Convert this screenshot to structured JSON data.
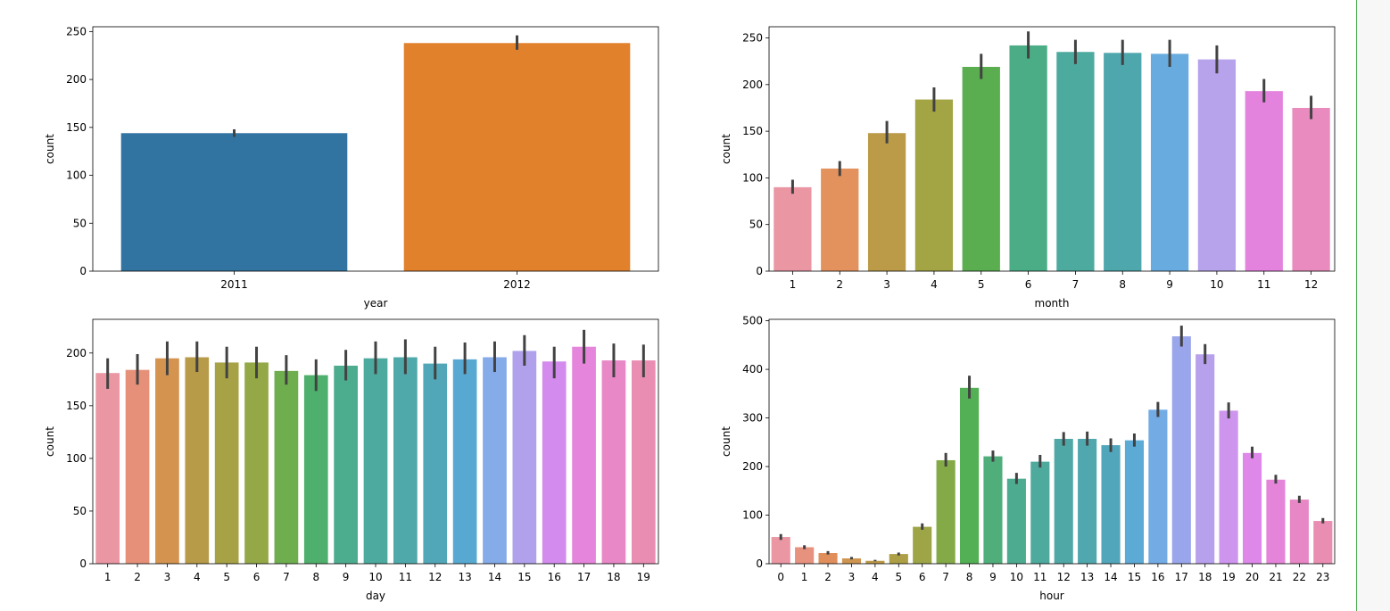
{
  "chart_data": [
    {
      "type": "bar",
      "xlabel": "year",
      "ylabel": "count",
      "categories": [
        "2011",
        "2012"
      ],
      "values": [
        144,
        238
      ],
      "errors": [
        [
          140,
          148
        ],
        [
          231,
          246
        ]
      ],
      "ylim": [
        0,
        255
      ],
      "yticks": [
        0,
        50,
        100,
        150,
        200,
        250
      ],
      "colors": [
        "#3274a1",
        "#e1812c"
      ]
    },
    {
      "type": "bar",
      "xlabel": "month",
      "ylabel": "count",
      "categories": [
        "1",
        "2",
        "3",
        "4",
        "5",
        "6",
        "7",
        "8",
        "9",
        "10",
        "11",
        "12"
      ],
      "values": [
        90,
        110,
        148,
        184,
        219,
        242,
        235,
        234,
        233,
        227,
        193,
        175
      ],
      "errors": [
        [
          83,
          98
        ],
        [
          102,
          118
        ],
        [
          137,
          161
        ],
        [
          171,
          197
        ],
        [
          206,
          233
        ],
        [
          228,
          257
        ],
        [
          222,
          248
        ],
        [
          221,
          248
        ],
        [
          219,
          248
        ],
        [
          212,
          242
        ],
        [
          181,
          206
        ],
        [
          163,
          188
        ]
      ],
      "ylim": [
        0,
        262
      ],
      "yticks": [
        0,
        50,
        100,
        150,
        200,
        250
      ],
      "colors": [
        "#ea96a3",
        "#e3925e",
        "#bb9b48",
        "#a3a545",
        "#5aae4f",
        "#4bad85",
        "#4caa9f",
        "#4ea7ac",
        "#68acdf",
        "#b7a2ec",
        "#e483de",
        "#e98bbf"
      ]
    },
    {
      "type": "bar",
      "xlabel": "day",
      "ylabel": "count",
      "categories": [
        "1",
        "2",
        "3",
        "4",
        "5",
        "6",
        "7",
        "8",
        "9",
        "10",
        "11",
        "12",
        "13",
        "14",
        "15",
        "16",
        "17",
        "18",
        "19"
      ],
      "values": [
        181,
        184,
        195,
        196,
        191,
        191,
        183,
        179,
        188,
        195,
        196,
        190,
        194,
        196,
        202,
        192,
        206,
        193,
        193
      ],
      "errors": [
        [
          166,
          195
        ],
        [
          170,
          199
        ],
        [
          179,
          211
        ],
        [
          182,
          211
        ],
        [
          176,
          206
        ],
        [
          176,
          206
        ],
        [
          170,
          198
        ],
        [
          164,
          194
        ],
        [
          174,
          203
        ],
        [
          180,
          211
        ],
        [
          180,
          213
        ],
        [
          175,
          206
        ],
        [
          180,
          210
        ],
        [
          182,
          211
        ],
        [
          188,
          217
        ],
        [
          176,
          206
        ],
        [
          190,
          222
        ],
        [
          177,
          209
        ],
        [
          177,
          208
        ]
      ],
      "ylim": [
        0,
        232
      ],
      "yticks": [
        0,
        50,
        100,
        150,
        200
      ],
      "colors": [
        "#ea96a3",
        "#e6907a",
        "#d4944f",
        "#b89b49",
        "#a8a246",
        "#94a847",
        "#6fae4e",
        "#4faf6c",
        "#4cac8e",
        "#4daa9e",
        "#4fa8a9",
        "#51a7b7",
        "#58a9d1",
        "#85abe8",
        "#b1a1ec",
        "#d38ced",
        "#e585db",
        "#e888c7",
        "#ea8db3"
      ]
    },
    {
      "type": "bar",
      "xlabel": "hour",
      "ylabel": "count",
      "categories": [
        "0",
        "1",
        "2",
        "3",
        "4",
        "5",
        "6",
        "7",
        "8",
        "9",
        "10",
        "11",
        "12",
        "13",
        "14",
        "15",
        "16",
        "17",
        "18",
        "19",
        "20",
        "21",
        "22",
        "23"
      ],
      "values": [
        55,
        34,
        22,
        11,
        6,
        20,
        76,
        213,
        362,
        221,
        175,
        210,
        257,
        257,
        244,
        254,
        317,
        468,
        431,
        315,
        228,
        173,
        132,
        88
      ],
      "errors": [
        [
          49,
          61
        ],
        [
          30,
          38
        ],
        [
          19,
          26
        ],
        [
          9,
          14
        ],
        [
          5,
          8
        ],
        [
          17,
          23
        ],
        [
          70,
          83
        ],
        [
          200,
          228
        ],
        [
          340,
          387
        ],
        [
          210,
          233
        ],
        [
          164,
          187
        ],
        [
          198,
          224
        ],
        [
          243,
          271
        ],
        [
          243,
          272
        ],
        [
          230,
          258
        ],
        [
          241,
          268
        ],
        [
          302,
          333
        ],
        [
          447,
          490
        ],
        [
          411,
          452
        ],
        [
          299,
          332
        ],
        [
          217,
          241
        ],
        [
          165,
          183
        ],
        [
          125,
          140
        ],
        [
          83,
          94
        ]
      ],
      "ylim": [
        0,
        503
      ],
      "yticks": [
        0,
        100,
        200,
        300,
        400,
        500
      ],
      "colors": [
        "#ea96a3",
        "#e7917f",
        "#e08f5c",
        "#ce9550",
        "#bc9a48",
        "#ad9f46",
        "#9ea546",
        "#83aa47",
        "#53b055",
        "#4fae7a",
        "#4dac8f",
        "#4daa9d",
        "#4fa8a5",
        "#50a7ae",
        "#52a6bb",
        "#5caad6",
        "#73abe5",
        "#9aa6ec",
        "#b7a1ec",
        "#cd95ed",
        "#de88ea",
        "#e585da",
        "#e887c6",
        "#ea8db3"
      ]
    }
  ]
}
